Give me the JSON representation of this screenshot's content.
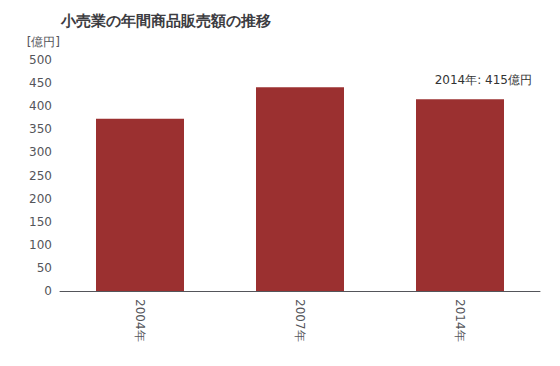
{
  "chart_data": {
    "type": "bar",
    "title": "小売業の年間商品販売額の推移",
    "ylabel": "[億円]",
    "annotation": "2014年: 415億円",
    "categories": [
      "2004年",
      "2007年",
      "2014年"
    ],
    "values": [
      373,
      441,
      415
    ],
    "color": "#9b3030",
    "ylim": [
      0,
      500
    ],
    "yticks": [
      0,
      50,
      100,
      150,
      200,
      250,
      300,
      350,
      400,
      450,
      500
    ],
    "grid": false
  }
}
